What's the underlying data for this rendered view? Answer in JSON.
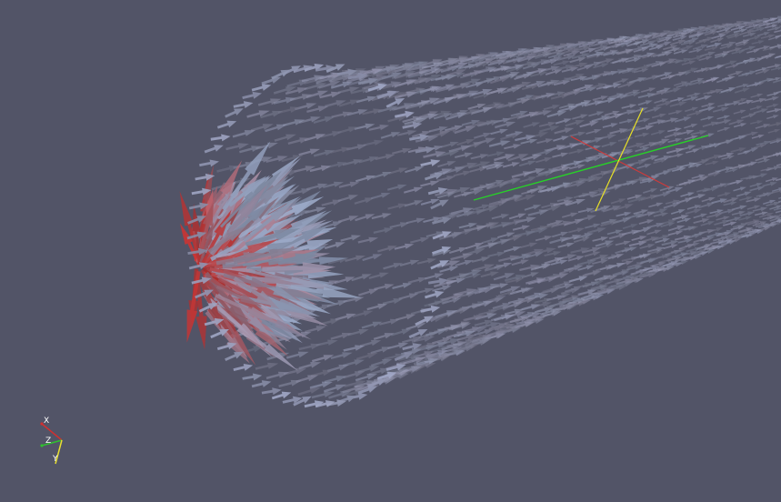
{
  "viewport": {
    "background_color": "#525467"
  },
  "glyph_field": {
    "glyph_type": "arrow",
    "color_low": "#98a6c4",
    "color_high": "#c8302e"
  },
  "center_marker": {
    "x_axis_color": "#d03a3a",
    "y_axis_color": "#28d028",
    "z_axis_color": "#e8e028"
  },
  "orientation_axes": {
    "x_label": "X",
    "y_label": "Y",
    "z_label": "Z",
    "x_color": "#d03030",
    "y_color": "#e8e030",
    "z_color": "#30c030"
  }
}
